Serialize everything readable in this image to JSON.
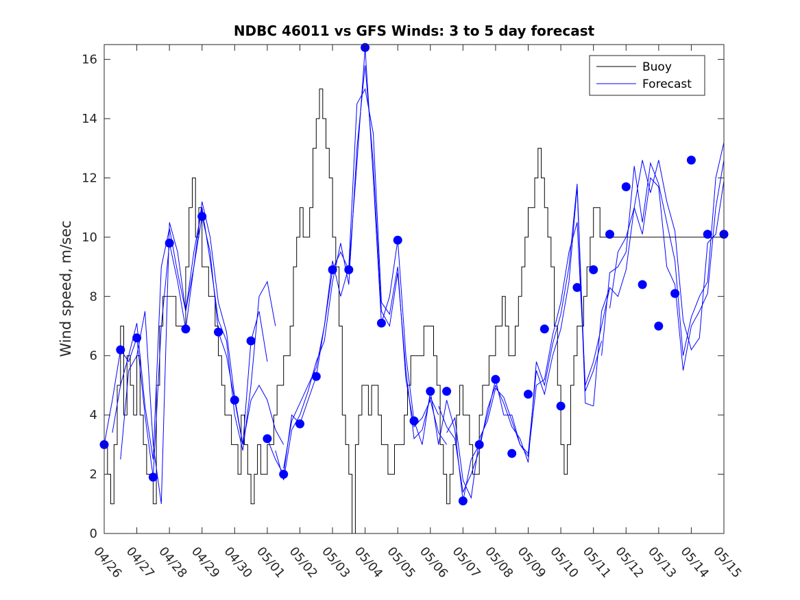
{
  "chart_data": {
    "type": "line",
    "title": "NDBC 46011 vs GFS Winds: 3 to 5 day forecast",
    "xlabel": "",
    "ylabel": "Wind speed, m/sec",
    "x_tick_labels": [
      "04/26",
      "04/27",
      "04/28",
      "04/29",
      "04/30",
      "05/01",
      "05/02",
      "05/03",
      "05/04",
      "05/05",
      "05/06",
      "05/07",
      "05/08",
      "05/09",
      "05/10",
      "05/11",
      "05/12",
      "05/13",
      "05/14",
      "05/15"
    ],
    "x_unit": "days from 04/26 00:00",
    "xlim": [
      0,
      19
    ],
    "ylim": [
      0,
      16.5
    ],
    "y_ticks": [
      0,
      2,
      4,
      6,
      8,
      10,
      12,
      14,
      16
    ],
    "grid": false,
    "legend": {
      "placement": "top-right",
      "entries": [
        "Buoy",
        "Forecast"
      ]
    },
    "colors": {
      "buoy": "#000000",
      "forecast": "#0000ff",
      "marker": "#0000ff"
    },
    "series": [
      {
        "name": "Buoy",
        "x": [
          0,
          0.1,
          0.2,
          0.3,
          0.4,
          0.5,
          0.6,
          0.7,
          0.8,
          0.9,
          1.0,
          1.1,
          1.2,
          1.3,
          1.4,
          1.5,
          1.6,
          1.7,
          1.8,
          1.9,
          2.0,
          2.1,
          2.2,
          2.3,
          2.4,
          2.5,
          2.6,
          2.7,
          2.8,
          2.9,
          3.0,
          3.1,
          3.2,
          3.3,
          3.4,
          3.5,
          3.6,
          3.7,
          3.8,
          3.9,
          4.0,
          4.1,
          4.2,
          4.3,
          4.4,
          4.5,
          4.6,
          4.7,
          4.8,
          4.9,
          5.0,
          5.1,
          5.2,
          5.3,
          5.4,
          5.5,
          5.6,
          5.7,
          5.8,
          5.9,
          6.0,
          6.1,
          6.2,
          6.3,
          6.4,
          6.5,
          6.6,
          6.7,
          6.8,
          6.9,
          7.0,
          7.1,
          7.2,
          7.3,
          7.4,
          7.5,
          7.6,
          7.7,
          7.8,
          7.9,
          8.0,
          8.1,
          8.2,
          8.3,
          8.4,
          8.5,
          8.6,
          8.7,
          8.8,
          8.9,
          9.0,
          9.1,
          9.2,
          9.3,
          9.4,
          9.5,
          9.6,
          9.7,
          9.8,
          9.9,
          10.0,
          10.1,
          10.2,
          10.3,
          10.4,
          10.5,
          10.6,
          10.7,
          10.8,
          10.9,
          11.0,
          11.1,
          11.2,
          11.3,
          11.4,
          11.5,
          11.6,
          11.7,
          11.8,
          11.9,
          12.0,
          12.1,
          12.2,
          12.3,
          12.4,
          12.5,
          12.6,
          12.7,
          12.8,
          12.9,
          13.0,
          13.1,
          13.2,
          13.3,
          13.4,
          13.5,
          13.6,
          13.7,
          13.8,
          13.9,
          14.0,
          14.1,
          14.2,
          14.3,
          14.4,
          14.5,
          14.6,
          14.7,
          14.8,
          14.9,
          15.0,
          15.1,
          15.2,
          15.3,
          15.4,
          15.5,
          15.6,
          15.7,
          15.8,
          15.9,
          16.0,
          16.1,
          16.2,
          16.3,
          16.4,
          16.5,
          16.6,
          16.7,
          16.8,
          16.9,
          17.0,
          17.1,
          17.2,
          17.3,
          17.4,
          17.5,
          17.6,
          17.7,
          17.8,
          17.9,
          18.0,
          18.1,
          18.2,
          18.3,
          18.4,
          18.5,
          18.6,
          18.7,
          18.8,
          18.9,
          19.0
        ],
        "values": [
          3,
          2,
          1,
          3,
          5,
          7,
          4,
          6,
          5,
          4,
          6,
          4,
          3,
          2,
          2,
          1,
          5,
          7,
          8,
          8,
          8,
          8,
          7,
          7,
          7,
          9,
          11,
          12,
          10,
          11,
          9,
          9,
          8,
          8,
          7,
          6,
          5,
          4,
          4,
          3,
          3,
          2,
          4,
          3,
          2,
          1,
          2,
          3,
          2,
          2,
          3,
          3,
          4,
          5,
          5,
          6,
          6,
          7,
          9,
          10,
          11,
          10,
          10,
          11,
          13,
          14,
          15,
          14,
          13,
          12,
          10,
          9,
          7,
          4,
          3,
          2,
          0,
          3,
          4,
          5,
          5,
          4,
          5,
          5,
          4,
          3,
          3,
          2,
          2,
          3,
          3,
          3,
          4,
          5,
          6,
          6,
          6,
          6,
          7,
          7,
          7,
          6,
          5,
          3,
          2,
          1,
          2,
          3,
          4,
          5,
          4,
          4,
          3,
          2,
          2,
          4,
          5,
          5,
          6,
          6,
          7,
          7,
          8,
          7,
          6,
          6,
          7,
          8,
          9,
          10,
          11,
          11,
          12,
          13,
          12,
          11,
          10,
          9,
          7,
          5,
          3,
          2,
          3,
          5,
          6,
          7,
          7,
          8,
          9,
          10,
          11,
          11,
          10,
          10,
          10,
          10,
          10,
          10,
          10,
          10,
          10,
          10,
          10,
          10,
          10,
          10,
          10,
          10,
          10,
          10,
          10,
          10,
          10,
          10,
          10,
          10,
          10,
          10,
          10,
          10,
          10,
          10,
          10,
          10,
          10,
          10,
          10,
          10,
          10,
          10,
          10
        ]
      },
      {
        "name": "Forecast",
        "runs": [
          {
            "x": [
              0.0,
              0.25,
              0.5,
              0.75,
              1.0,
              1.25,
              1.5,
              1.75,
              2.0,
              2.25,
              2.5,
              2.75,
              3.0,
              3.25,
              3.5,
              3.75,
              4.0,
              4.25,
              4.5,
              4.75,
              5.0
            ],
            "values": [
              3.0,
              4.5,
              6.2,
              5.8,
              6.6,
              4.0,
              1.9,
              7.0,
              9.8,
              8.5,
              6.9,
              9.0,
              10.7,
              9.5,
              6.8,
              6.0,
              4.5,
              3.0,
              6.5,
              7.5,
              5.8
            ]
          },
          {
            "x": [
              0.25,
              0.5,
              0.75,
              1.0,
              1.25,
              1.5,
              1.75,
              2.0,
              2.25,
              2.5,
              2.75,
              3.0,
              3.25,
              3.5,
              3.75,
              4.0,
              4.25,
              4.5,
              4.75,
              5.0,
              5.25
            ],
            "values": [
              3.4,
              5.0,
              6.0,
              7.1,
              4.3,
              2.5,
              9.0,
              10.3,
              8.8,
              7.5,
              9.5,
              11.0,
              9.2,
              7.2,
              6.5,
              4.0,
              2.8,
              5.0,
              8.0,
              8.5,
              7.0
            ]
          },
          {
            "x": [
              0.5,
              0.75,
              1.0,
              1.25,
              1.5,
              1.75,
              2.0,
              2.25,
              2.5,
              2.75,
              3.0,
              3.25,
              3.5,
              3.75,
              4.0,
              4.25,
              4.5,
              4.75,
              5.0,
              5.25,
              5.5
            ],
            "values": [
              2.5,
              5.5,
              6.0,
              7.5,
              3.0,
              1.0,
              10.5,
              9.5,
              7.5,
              9.0,
              11.2,
              10.0,
              7.8,
              6.8,
              4.6,
              3.0,
              4.5,
              5.0,
              4.5,
              3.5,
              3.0
            ]
          },
          {
            "x": [
              5.0,
              5.25,
              5.5,
              5.75,
              6.0,
              6.25,
              6.5,
              6.75,
              7.0,
              7.25,
              7.5,
              7.75,
              8.0,
              8.25,
              8.5,
              8.75,
              9.0,
              9.25,
              9.5,
              9.75,
              10.0
            ],
            "values": [
              3.2,
              2.5,
              2.0,
              4.0,
              3.7,
              4.5,
              5.3,
              7.0,
              8.9,
              9.5,
              8.9,
              12.5,
              16.4,
              12.0,
              7.1,
              8.0,
              9.9,
              6.0,
              3.8,
              3.0,
              4.8
            ]
          },
          {
            "x": [
              5.25,
              5.5,
              5.75,
              6.0,
              6.25,
              6.5,
              6.75,
              7.0,
              7.25,
              7.5,
              7.75,
              8.0,
              8.25,
              8.5,
              8.75,
              9.0,
              9.25,
              9.5,
              9.75,
              10.0,
              10.25
            ],
            "values": [
              2.8,
              1.8,
              3.5,
              4.0,
              4.8,
              5.8,
              6.5,
              8.5,
              9.8,
              8.4,
              13.0,
              15.8,
              12.5,
              7.5,
              7.0,
              8.8,
              5.5,
              3.2,
              3.5,
              4.6,
              4.0
            ]
          },
          {
            "x": [
              5.5,
              5.75,
              6.0,
              6.25,
              6.5,
              6.75,
              7.0,
              7.25,
              7.5,
              7.75,
              8.0,
              8.25,
              8.5,
              8.75,
              9.0,
              9.25,
              9.5,
              9.75,
              10.0,
              10.25,
              10.5
            ],
            "values": [
              2.2,
              3.8,
              4.4,
              5.0,
              5.6,
              7.0,
              9.2,
              8.0,
              9.0,
              14.5,
              15.0,
              13.5,
              7.8,
              7.4,
              9.0,
              5.2,
              3.6,
              3.9,
              4.5,
              3.4,
              3.0
            ]
          },
          {
            "x": [
              10.0,
              10.25,
              10.5,
              10.75,
              11.0,
              11.25,
              11.5,
              11.75,
              12.0,
              12.25,
              12.5,
              12.75,
              13.0,
              13.25,
              13.5,
              13.75,
              14.0,
              14.25,
              14.5,
              14.75,
              15.0
            ],
            "values": [
              4.8,
              3.0,
              4.5,
              3.5,
              1.1,
              2.5,
              3.0,
              4.0,
              5.2,
              4.0,
              4.0,
              3.0,
              2.7,
              5.5,
              4.7,
              6.0,
              6.9,
              8.5,
              11.7,
              4.4,
              4.3
            ]
          },
          {
            "x": [
              10.25,
              10.5,
              10.75,
              11.0,
              11.25,
              11.5,
              11.75,
              12.0,
              12.25,
              12.5,
              12.75,
              13.0,
              13.25,
              13.5,
              13.75,
              14.0,
              14.25,
              14.5,
              14.75,
              15.0,
              15.25
            ],
            "values": [
              4.3,
              3.6,
              3.2,
              1.4,
              2.0,
              2.8,
              4.2,
              5.0,
              4.4,
              3.6,
              3.2,
              2.4,
              5.8,
              5.0,
              6.4,
              7.4,
              9.0,
              11.8,
              4.8,
              5.5,
              6.5
            ]
          },
          {
            "x": [
              10.5,
              10.75,
              11.0,
              11.25,
              11.5,
              11.75,
              12.0,
              12.25,
              12.5,
              12.75,
              13.0,
              13.25,
              13.5,
              13.75,
              14.0,
              14.25,
              14.5,
              14.75,
              15.0,
              15.25,
              15.5
            ],
            "values": [
              3.4,
              3.9,
              1.8,
              1.2,
              3.2,
              3.8,
              4.9,
              4.6,
              3.8,
              3.0,
              2.6,
              5.0,
              5.2,
              6.7,
              7.8,
              9.5,
              10.5,
              5.0,
              5.8,
              7.0,
              8.3
            ]
          },
          {
            "x": [
              15.0,
              15.25,
              15.5,
              15.75,
              16.0,
              16.25,
              16.5,
              16.75,
              17.0,
              17.25,
              17.5,
              17.75,
              18.0,
              18.25,
              18.5,
              18.75,
              19.0
            ],
            "values": [
              4.3,
              7.5,
              8.3,
              8.0,
              8.9,
              11.0,
              10.1,
              12.0,
              11.7,
              9.0,
              8.4,
              5.5,
              7.0,
              7.5,
              8.1,
              11.0,
              12.6
            ]
          },
          {
            "x": [
              15.25,
              15.5,
              15.75,
              16.0,
              16.25,
              16.5,
              16.75,
              17.0,
              17.25,
              17.5,
              17.75,
              18.0,
              18.25,
              18.5,
              18.75,
              19.0
            ],
            "values": [
              6.0,
              8.8,
              9.0,
              9.5,
              12.4,
              10.5,
              12.5,
              11.8,
              10.5,
              9.2,
              6.0,
              7.3,
              8.0,
              8.5,
              12.0,
              13.2
            ]
          },
          {
            "x": [
              15.5,
              15.75,
              16.0,
              16.25,
              16.5,
              16.75,
              17.0,
              17.25,
              17.5,
              17.75,
              18.0,
              18.25,
              18.5,
              18.75,
              19.0
            ],
            "values": [
              7.6,
              9.5,
              10.0,
              11.0,
              12.6,
              11.5,
              12.6,
              11.2,
              10.2,
              7.2,
              6.2,
              6.6,
              9.8,
              10.1,
              11.9
            ]
          }
        ],
        "marker_x": [
          0.0,
          0.5,
          1.0,
          1.5,
          2.0,
          2.5,
          3.0,
          3.5,
          4.0,
          4.5,
          5.0,
          5.5,
          6.0,
          6.5,
          7.0,
          7.5,
          8.0,
          8.5,
          9.0,
          9.5,
          10.0,
          10.5,
          11.0,
          11.5,
          12.0,
          12.5,
          13.0,
          13.5,
          14.0,
          14.5,
          15.0,
          15.5,
          16.0,
          16.5,
          17.0,
          17.5,
          18.0,
          18.5,
          19.0
        ],
        "marker_values": [
          3.0,
          6.2,
          6.6,
          1.9,
          9.8,
          6.9,
          10.7,
          6.8,
          4.5,
          6.5,
          3.2,
          2.0,
          3.7,
          5.3,
          8.9,
          8.9,
          16.4,
          7.1,
          9.9,
          3.8,
          4.8,
          4.8,
          1.1,
          3.0,
          5.2,
          2.7,
          4.7,
          6.9,
          4.3,
          8.3,
          8.9,
          10.1,
          11.7,
          8.4,
          7.0,
          8.1,
          12.6,
          10.1,
          10.1
        ]
      }
    ]
  }
}
